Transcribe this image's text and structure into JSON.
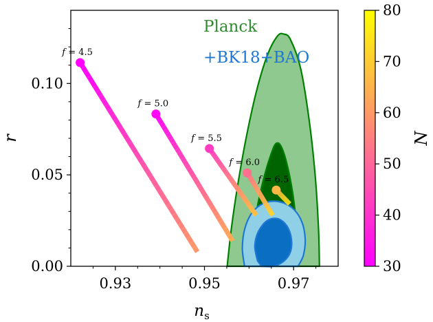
{
  "chart_data": {
    "type": "line",
    "x_axis": {
      "label_main": "n",
      "label_sub": "s",
      "range": [
        0.92,
        0.98
      ],
      "ticks": [
        0.93,
        0.95,
        0.97
      ],
      "tick_labels": [
        "0.93",
        "0.95",
        "0.97"
      ]
    },
    "y_axis": {
      "label": "r",
      "range": [
        0.0,
        0.14
      ],
      "ticks": [
        0.0,
        0.05,
        0.1
      ],
      "tick_labels": [
        "0.00",
        "0.05",
        "0.10"
      ]
    },
    "colorbar": {
      "label": "N",
      "range": [
        30,
        80
      ],
      "ticks": [
        30,
        40,
        50,
        60,
        70,
        80
      ],
      "tick_labels": [
        "30",
        "40",
        "50",
        "60",
        "70",
        "80"
      ],
      "colors": [
        "#ff00ff",
        "#ffff00"
      ]
    },
    "contours": [
      {
        "name": "Planck",
        "color": "#008000",
        "levels": [
          {
            "level": "95%",
            "fill": "#8fc98f",
            "outline": [
              [
                0.9551,
                0.0
              ],
              [
                0.956,
                0.02
              ],
              [
                0.9575,
                0.045
              ],
              [
                0.9595,
                0.072
              ],
              [
                0.9618,
                0.097
              ],
              [
                0.9642,
                0.116
              ],
              [
                0.9664,
                0.126
              ],
              [
                0.9678,
                0.127
              ],
              [
                0.9693,
                0.124
              ],
              [
                0.9716,
                0.108
              ],
              [
                0.9736,
                0.078
              ],
              [
                0.9749,
                0.048
              ],
              [
                0.9756,
                0.02
              ],
              [
                0.9758,
                0.0
              ]
            ]
          },
          {
            "level": "68%",
            "fill": "#006400",
            "outline": [
              [
                0.9599,
                0.0
              ],
              [
                0.9607,
                0.015
              ],
              [
                0.9619,
                0.033
              ],
              [
                0.9634,
                0.049
              ],
              [
                0.9649,
                0.061
              ],
              [
                0.966,
                0.067
              ],
              [
                0.9671,
                0.066
              ],
              [
                0.9684,
                0.057
              ],
              [
                0.9698,
                0.04
              ],
              [
                0.9708,
                0.018
              ],
              [
                0.971,
                0.0
              ]
            ]
          }
        ]
      },
      {
        "name": "+BK18+BAO",
        "color": "#1f77d4",
        "levels": [
          {
            "level": "95%",
            "fill": "#8fd0e6",
            "outline": [
              [
                0.959,
                0.0
              ],
              [
                0.9585,
                0.01
              ],
              [
                0.9591,
                0.021
              ],
              [
                0.9609,
                0.03
              ],
              [
                0.9639,
                0.035
              ],
              [
                0.9673,
                0.035
              ],
              [
                0.9701,
                0.031
              ],
              [
                0.9719,
                0.024
              ],
              [
                0.9726,
                0.015
              ],
              [
                0.9722,
                0.006
              ],
              [
                0.971,
                0.0
              ]
            ]
          },
          {
            "level": "68%",
            "fill": "#0a6fc2",
            "outline": [
              [
                0.9619,
                0.003
              ],
              [
                0.9613,
                0.011
              ],
              [
                0.9621,
                0.019
              ],
              [
                0.9641,
                0.025
              ],
              [
                0.9665,
                0.026
              ],
              [
                0.9685,
                0.022
              ],
              [
                0.9695,
                0.015
              ],
              [
                0.9693,
                0.008
              ],
              [
                0.9679,
                0.003
              ],
              [
                0.9655,
                0.0
              ],
              [
                0.9628,
                0.0
              ]
            ]
          }
        ]
      }
    ],
    "series": [
      {
        "name": "f = 4.5",
        "label": {
          "prefix": "f = ",
          "value": "4.5"
        },
        "N_range": [
          30,
          60
        ],
        "points": [
          [
            0.9221,
            0.1114
          ],
          [
            0.9484,
            0.0079
          ]
        ]
      },
      {
        "name": "f = 5.0",
        "label": {
          "prefix": "f = ",
          "value": "5.0"
        },
        "N_range": [
          32,
          64
        ],
        "points": [
          [
            0.9391,
            0.0833
          ],
          [
            0.9563,
            0.0139
          ]
        ]
      },
      {
        "name": "f = 5.5",
        "label": {
          "prefix": "f = ",
          "value": "5.5"
        },
        "N_range": [
          42,
          68
        ],
        "points": [
          [
            0.9511,
            0.0644
          ],
          [
            0.9616,
            0.0279
          ]
        ]
      },
      {
        "name": "f = 6.0",
        "label": {
          "prefix": "f = ",
          "value": "6.0"
        },
        "N_range": [
          52,
          72
        ],
        "points": [
          [
            0.9596,
            0.0511
          ],
          [
            0.9653,
            0.0279
          ]
        ]
      },
      {
        "name": "f = 6.5",
        "label": {
          "prefix": "f = ",
          "value": "6.5"
        },
        "N_range": [
          66,
          76
        ],
        "points": [
          [
            0.9661,
            0.0417
          ],
          [
            0.9691,
            0.0341
          ]
        ]
      }
    ],
    "annotations": [
      {
        "text": "Planck",
        "color": "#2e8b2e"
      },
      {
        "text": "+BK18+BAO",
        "color": "#1f77d4"
      }
    ],
    "grid": false
  }
}
